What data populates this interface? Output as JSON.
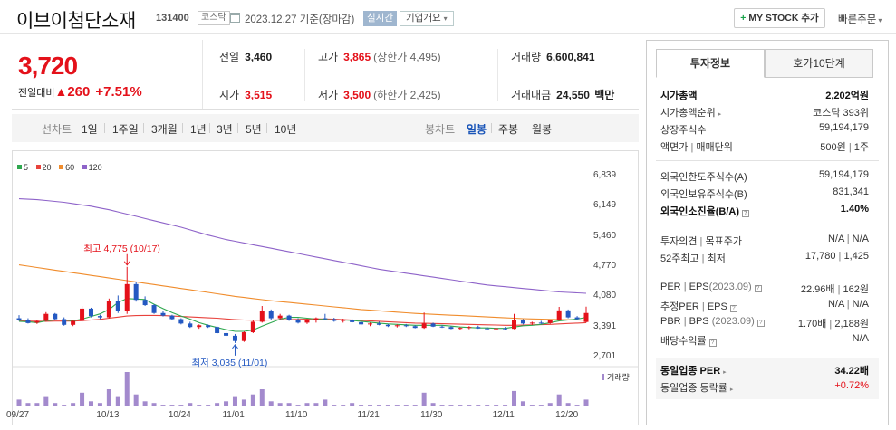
{
  "header": {
    "name": "이브이첨단소재",
    "code": "131400",
    "market_badge": "코스닥",
    "date": "2023.12.27",
    "date_suffix": "기준(장마감)",
    "realtime_badge": "실시간",
    "company_overview": "기업개요",
    "company_overview_caret": "▾",
    "my_stock_plus": "+",
    "my_stock": "MY STOCK 추가",
    "quick_order": "빠른주문",
    "quick_order_caret": "▾"
  },
  "price": {
    "current": "3,720",
    "change_label": "전일대비",
    "change_arrow": "▲",
    "change": "260",
    "change_pct": "+7.51%"
  },
  "stats": {
    "prev_close_label": "전일",
    "prev_close": "3,460",
    "open_label": "시가",
    "open": "3,515",
    "high_label": "고가",
    "high": "3,865",
    "upper_limit": "(상한가 4,495)",
    "low_label": "저가",
    "low": "3,500",
    "lower_limit": "(하한가 2,425)",
    "volume_label": "거래량",
    "volume": "6,600,841",
    "trade_value_label": "거래대금",
    "trade_value": "24,550",
    "trade_value_unit": "백만"
  },
  "chart_toolbar": {
    "line_chart": "선차트",
    "periods": [
      "1일",
      "1주일",
      "3개월",
      "1년",
      "3년",
      "5년",
      "10년"
    ],
    "candle_chart": "봉차트",
    "candle_periods": [
      "일봉",
      "주봉",
      "월봉"
    ],
    "selected_candle": "일봉"
  },
  "chart_data": {
    "type": "candlestick",
    "legend": [
      "5",
      "20",
      "60",
      "120"
    ],
    "ma_colors": {
      "5": "#2fa84f",
      "20": "#e8423c",
      "60": "#f08c2c",
      "120": "#8e63c9"
    },
    "up_color": "#e4111a",
    "down_color": "#2459c2",
    "volume_color": "#a38acd",
    "y_ticks": [
      "6,839",
      "6,149",
      "5,460",
      "4,770",
      "4,080",
      "3,391",
      "2,701"
    ],
    "y_tick_values": [
      6839,
      6149,
      5460,
      4770,
      4080,
      3391,
      2701
    ],
    "x_ticks": [
      "09/27",
      "10/13",
      "10/24",
      "11/01",
      "11/10",
      "11/21",
      "11/30",
      "12/11",
      "12/20"
    ],
    "x_tick_index": [
      0,
      10,
      18,
      24,
      31,
      39,
      46,
      54,
      61
    ],
    "high_annotation": "최고 4,775 (10/17)",
    "high_annotation_value": 4775,
    "high_annotation_index": 12,
    "low_annotation": "최저 3,035 (11/01)",
    "low_annotation_value": 3035,
    "low_annotation_index": 24,
    "volume_label": "거래량",
    "candles": [
      [
        3600,
        3670,
        3540,
        3560
      ],
      [
        3560,
        3600,
        3480,
        3490
      ],
      [
        3500,
        3560,
        3470,
        3540
      ],
      [
        3540,
        3740,
        3520,
        3700
      ],
      [
        3700,
        3720,
        3560,
        3580
      ],
      [
        3580,
        3620,
        3430,
        3450
      ],
      [
        3450,
        3560,
        3420,
        3540
      ],
      [
        3540,
        3880,
        3520,
        3820
      ],
      [
        3820,
        3840,
        3620,
        3650
      ],
      [
        3650,
        3680,
        3580,
        3620
      ],
      [
        3620,
        4050,
        3600,
        4000
      ],
      [
        4000,
        4120,
        3720,
        3760
      ],
      [
        3760,
        4775,
        3700,
        4380
      ],
      [
        4380,
        4420,
        3980,
        4020
      ],
      [
        4020,
        4100,
        3880,
        3900
      ],
      [
        3900,
        3920,
        3700,
        3720
      ],
      [
        3720,
        3760,
        3640,
        3660
      ],
      [
        3660,
        3680,
        3560,
        3580
      ],
      [
        3580,
        3600,
        3460,
        3480
      ],
      [
        3480,
        3520,
        3380,
        3400
      ],
      [
        3400,
        3460,
        3360,
        3440
      ],
      [
        3440,
        3460,
        3380,
        3400
      ],
      [
        3400,
        3420,
        3240,
        3260
      ],
      [
        3260,
        3300,
        3180,
        3200
      ],
      [
        3200,
        3240,
        3035,
        3080
      ],
      [
        3080,
        3300,
        3060,
        3280
      ],
      [
        3280,
        3560,
        3260,
        3520
      ],
      [
        3520,
        3880,
        3500,
        3760
      ],
      [
        3760,
        3800,
        3560,
        3600
      ],
      [
        3600,
        3700,
        3560,
        3660
      ],
      [
        3660,
        3680,
        3540,
        3560
      ],
      [
        3560,
        3600,
        3480,
        3500
      ],
      [
        3500,
        3580,
        3470,
        3560
      ],
      [
        3560,
        3620,
        3500,
        3600
      ],
      [
        3600,
        3700,
        3560,
        3580
      ],
      [
        3580,
        3610,
        3520,
        3540
      ],
      [
        3540,
        3590,
        3500,
        3560
      ],
      [
        3560,
        3580,
        3500,
        3510
      ],
      [
        3510,
        3530,
        3440,
        3460
      ],
      [
        3460,
        3500,
        3420,
        3480
      ],
      [
        3480,
        3520,
        3440,
        3450
      ],
      [
        3450,
        3470,
        3400,
        3420
      ],
      [
        3420,
        3460,
        3390,
        3440
      ],
      [
        3440,
        3470,
        3400,
        3420
      ],
      [
        3420,
        3440,
        3370,
        3380
      ],
      [
        3380,
        3730,
        3360,
        3480
      ],
      [
        3480,
        3500,
        3400,
        3410
      ],
      [
        3410,
        3440,
        3380,
        3400
      ],
      [
        3400,
        3420,
        3350,
        3360
      ],
      [
        3360,
        3400,
        3340,
        3380
      ],
      [
        3380,
        3420,
        3350,
        3400
      ],
      [
        3400,
        3430,
        3360,
        3370
      ],
      [
        3370,
        3400,
        3340,
        3350
      ],
      [
        3350,
        3380,
        3330,
        3370
      ],
      [
        3370,
        3400,
        3340,
        3360
      ],
      [
        3360,
        3700,
        3350,
        3560
      ],
      [
        3560,
        3580,
        3460,
        3480
      ],
      [
        3480,
        3520,
        3450,
        3500
      ],
      [
        3500,
        3540,
        3470,
        3490
      ],
      [
        3490,
        3570,
        3470,
        3560
      ],
      [
        3560,
        3860,
        3540,
        3780
      ],
      [
        3780,
        3800,
        3600,
        3620
      ],
      [
        3620,
        3650,
        3560,
        3580
      ],
      [
        3515,
        3865,
        3500,
        3720
      ]
    ],
    "ma5": [
      3530,
      3520,
      3500,
      3540,
      3560,
      3560,
      3540,
      3580,
      3640,
      3700,
      3800,
      3960,
      4050,
      4040,
      4030,
      3920,
      3820,
      3730,
      3650,
      3580,
      3500,
      3440,
      3390,
      3340,
      3300,
      3300,
      3330,
      3420,
      3500,
      3580,
      3620,
      3620,
      3600,
      3580,
      3570,
      3560,
      3560,
      3550,
      3530,
      3510,
      3490,
      3470,
      3460,
      3450,
      3440,
      3440,
      3440,
      3440,
      3420,
      3400,
      3390,
      3380,
      3380,
      3370,
      3370,
      3400,
      3430,
      3440,
      3460,
      3500,
      3540,
      3560,
      3580,
      3620
    ],
    "ma20": [
      3540,
      3535,
      3530,
      3530,
      3535,
      3535,
      3535,
      3545,
      3560,
      3575,
      3600,
      3625,
      3650,
      3660,
      3665,
      3665,
      3660,
      3650,
      3640,
      3630,
      3620,
      3610,
      3600,
      3585,
      3570,
      3560,
      3555,
      3555,
      3560,
      3565,
      3570,
      3575,
      3580,
      3585,
      3585,
      3580,
      3570,
      3560,
      3550,
      3540,
      3530,
      3520,
      3510,
      3500,
      3490,
      3485,
      3480,
      3475,
      3470,
      3465,
      3460,
      3455,
      3450,
      3445,
      3440,
      3440,
      3445,
      3450,
      3455,
      3460,
      3470,
      3480,
      3490,
      3500
    ],
    "ma60": [
      4820,
      4790,
      4760,
      4730,
      4700,
      4670,
      4640,
      4610,
      4580,
      4550,
      4520,
      4490,
      4460,
      4430,
      4400,
      4370,
      4340,
      4310,
      4280,
      4250,
      4220,
      4190,
      4160,
      4130,
      4100,
      4075,
      4050,
      4025,
      4000,
      3980,
      3960,
      3940,
      3920,
      3900,
      3880,
      3860,
      3840,
      3820,
      3800,
      3785,
      3770,
      3755,
      3740,
      3725,
      3710,
      3700,
      3690,
      3680,
      3670,
      3660,
      3650,
      3640,
      3630,
      3620,
      3610,
      3600,
      3590,
      3585,
      3580,
      3575,
      3570,
      3565,
      3560,
      3555
    ],
    "ma120": [
      6330,
      6320,
      6310,
      6290,
      6270,
      6250,
      6220,
      6190,
      6160,
      6120,
      6080,
      6030,
      5980,
      5930,
      5880,
      5830,
      5780,
      5730,
      5680,
      5620,
      5560,
      5500,
      5450,
      5400,
      5360,
      5320,
      5280,
      5240,
      5200,
      5160,
      5120,
      5080,
      5040,
      5000,
      4960,
      4920,
      4880,
      4840,
      4800,
      4760,
      4720,
      4690,
      4660,
      4630,
      4600,
      4570,
      4540,
      4510,
      4480,
      4450,
      4420,
      4390,
      4360,
      4340,
      4320,
      4300,
      4280,
      4260,
      4240,
      4220,
      4200,
      4190,
      4180,
      4170
    ],
    "volumes": [
      0.2,
      0.1,
      0.1,
      0.3,
      0.1,
      0.05,
      0.1,
      0.4,
      0.15,
      0.1,
      0.5,
      0.3,
      1.0,
      0.35,
      0.15,
      0.1,
      0.05,
      0.05,
      0.05,
      0.1,
      0.05,
      0.05,
      0.1,
      0.15,
      0.3,
      0.2,
      0.35,
      0.5,
      0.15,
      0.1,
      0.1,
      0.05,
      0.1,
      0.1,
      0.2,
      0.05,
      0.05,
      0.1,
      0.05,
      0.05,
      0.05,
      0.05,
      0.05,
      0.05,
      0.05,
      0.4,
      0.1,
      0.05,
      0.05,
      0.05,
      0.05,
      0.05,
      0.05,
      0.05,
      0.05,
      0.45,
      0.15,
      0.05,
      0.05,
      0.1,
      0.35,
      0.1,
      0.05,
      0.2
    ]
  },
  "right_panel": {
    "tab_invest": "투자정보",
    "tab_orderbook": "호가10단계",
    "market_cap_label": "시가총액",
    "market_cap": "2,202억원",
    "market_cap_rank_label": "시가총액순위",
    "market_cap_rank": "코스닥 393위",
    "listed_shares_label": "상장주식수",
    "listed_shares": "59,194,179",
    "face_value_label": "액면가",
    "trade_unit_label": "매매단위",
    "face_value": "500원",
    "trade_unit": "1주",
    "foreign_limit_label": "외국인한도주식수(A)",
    "foreign_limit": "59,194,179",
    "foreign_hold_label": "외국인보유주식수(B)",
    "foreign_hold": "831,341",
    "foreign_ratio_label": "외국인소진율(B/A)",
    "foreign_ratio": "1.40%",
    "opinion_label": "투자의견",
    "target_label": "목표주가",
    "opinion": "N/A",
    "target": "N/A",
    "w52_high_label": "52주최고",
    "w52_low_label": "최저",
    "w52_high": "17,780",
    "w52_low": "1,425",
    "per_label": "PER",
    "eps_label": "EPS",
    "per_eps_period": "(2023.09)",
    "per": "22.96배",
    "eps": "162원",
    "est_per_label": "추정PER",
    "est_eps_label": "EPS",
    "est_per": "N/A",
    "est_eps": "N/A",
    "pbr_label": "PBR",
    "bps_label": "BPS",
    "pbr_bps_period": "(2023.09)",
    "pbr": "1.70배",
    "bps": "2,188원",
    "div_yield_label": "배당수익률",
    "div_yield": "N/A",
    "sector_per_label": "동일업종 PER",
    "sector_per": "34.22배",
    "sector_change_label": "동일업종 등락률",
    "sector_change": "+0.72%",
    "sep": "|",
    "help_icon": "?",
    "caret_right": "▸"
  }
}
